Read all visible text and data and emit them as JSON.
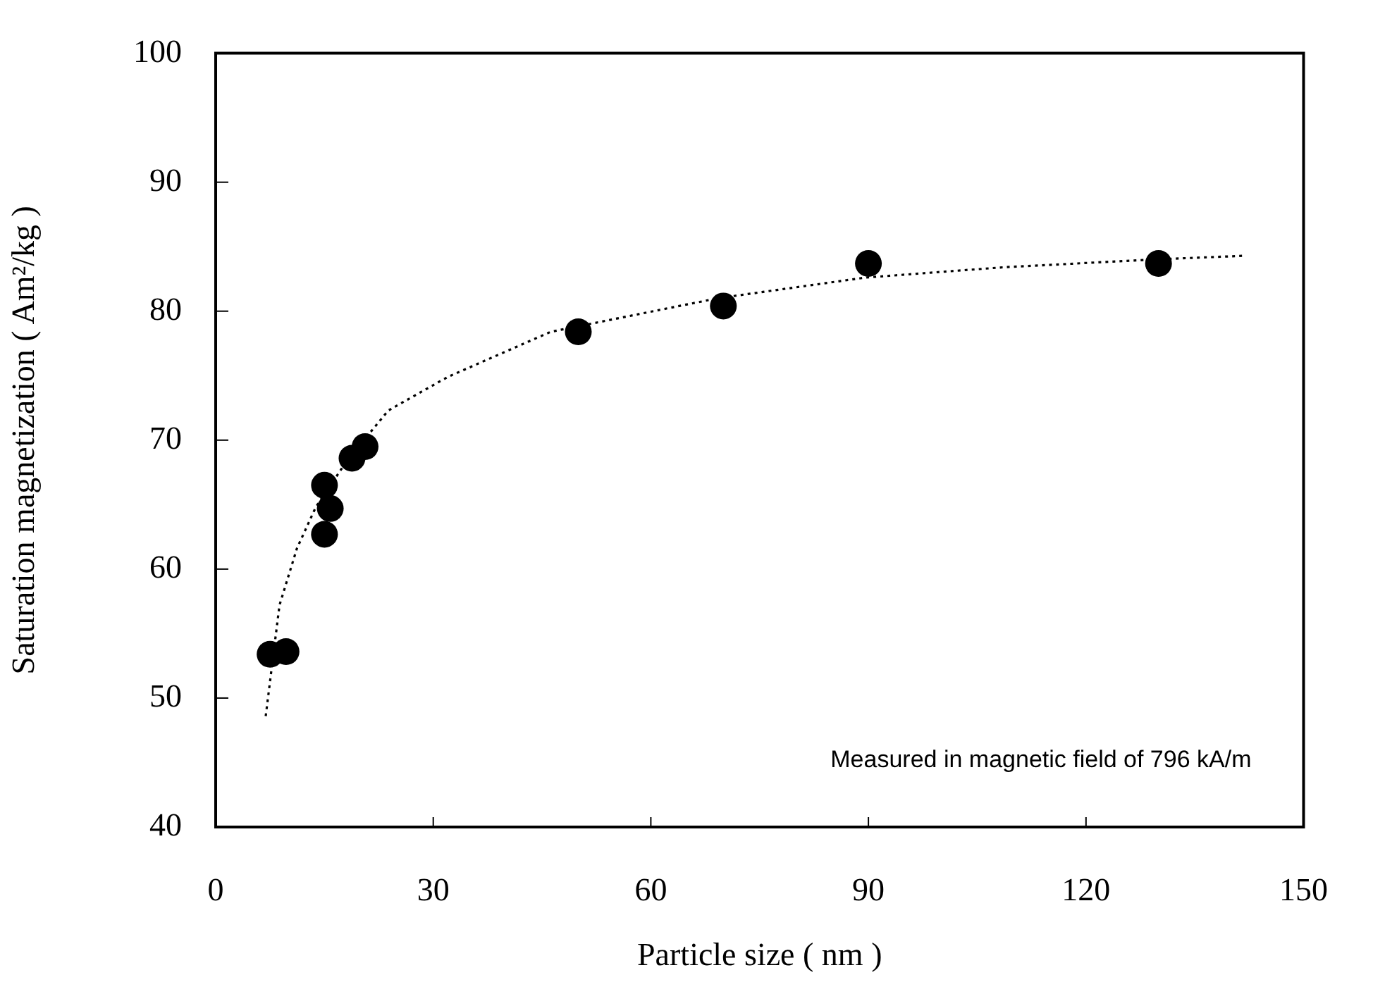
{
  "chart_data": {
    "type": "scatter",
    "xlabel": "Particle size ( nm )",
    "ylabel": "Saturation magnetization ( Am²/kg )",
    "annotations": [
      "Measured in magnetic field of 796 kA/m"
    ],
    "xlim": [
      0,
      150
    ],
    "ylim": [
      40,
      100
    ],
    "xticks": [
      0,
      30,
      60,
      90,
      120,
      150
    ],
    "yticks": [
      40,
      50,
      60,
      70,
      80,
      90,
      100
    ],
    "series": [
      {
        "color": "#000000",
        "marker": "circle",
        "x": [
          7.5,
          9.7,
          15.0,
          15.8,
          15.0,
          18.8,
          20.6,
          50,
          70,
          90,
          130
        ],
        "values": [
          53.4,
          53.6,
          66.5,
          64.7,
          62.7,
          68.6,
          69.5,
          78.4,
          80.4,
          83.7,
          83.7
        ]
      },
      {
        "type": "line",
        "color": "#000000",
        "marker": "none",
        "line_style": "dotted",
        "x": [
          6.9,
          8.8,
          11.2,
          13.8,
          18.1,
          23.8,
          32,
          46.2,
          69.2,
          89.5,
          108.5,
          129,
          142
        ],
        "values": [
          48.6,
          57.2,
          61.6,
          64.8,
          68.4,
          72.3,
          74.9,
          78.4,
          81.0,
          82.6,
          83.4,
          84.0,
          84.3
        ]
      }
    ]
  }
}
